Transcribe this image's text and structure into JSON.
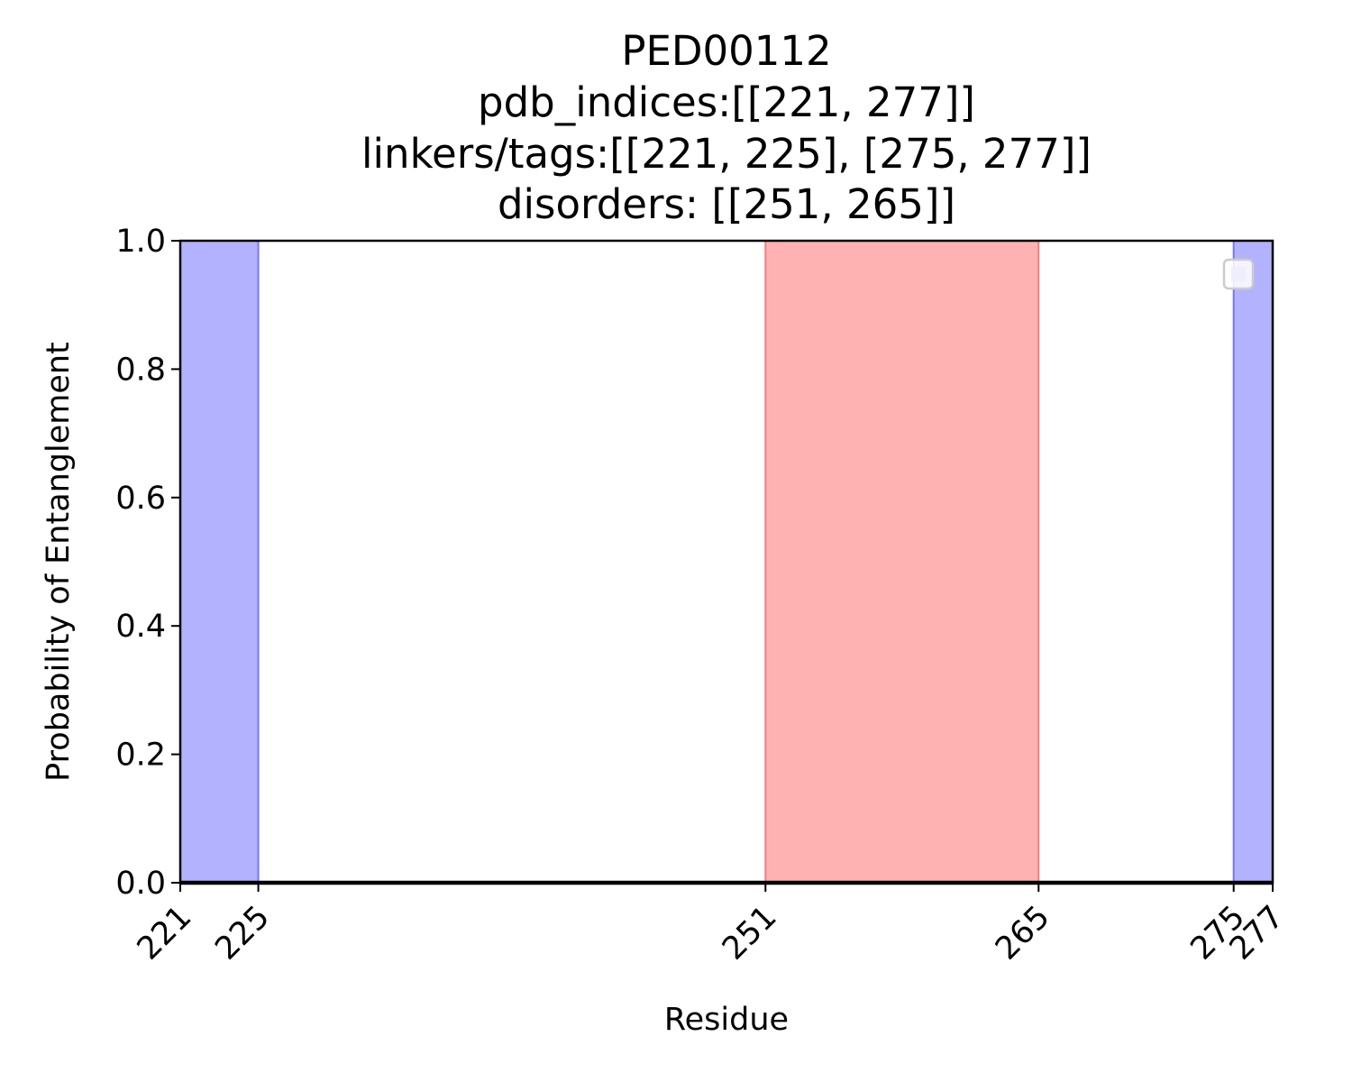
{
  "chart_data": {
    "type": "area",
    "title": [
      "PED00112",
      "pdb_indices:[[221, 277]]",
      "linkers/tags:[[221, 225], [275, 277]]",
      "disorders: [[251, 265]]"
    ],
    "xlabel": "Residue",
    "ylabel": "Probability of Entanglement",
    "xlim": [
      221,
      277
    ],
    "ylim": [
      0.0,
      1.0
    ],
    "x_ticks": [
      221,
      225,
      251,
      265,
      275,
      277
    ],
    "y_ticks": [
      "0.0",
      "0.2",
      "0.4",
      "0.6",
      "0.8",
      "1.0"
    ],
    "y_tick_values": [
      0.0,
      0.2,
      0.4,
      0.6,
      0.8,
      1.0
    ],
    "grid": false,
    "legend": {
      "placement": "upper right",
      "entries": []
    },
    "series": [
      {
        "x": [
          221,
          277
        ],
        "values": [
          0.0,
          0.0
        ],
        "color": "#000000"
      }
    ],
    "spans": [
      {
        "kind": "linker",
        "x0": 221,
        "x1": 225,
        "color": "#b2b2ff",
        "edge": "#7777ff"
      },
      {
        "kind": "linker",
        "x0": 275,
        "x1": 277,
        "color": "#b2b2ff",
        "edge": "#7777ff"
      },
      {
        "kind": "disorder",
        "x0": 251,
        "x1": 265,
        "color": "#ffb2b2",
        "edge": "#f08080"
      }
    ]
  }
}
